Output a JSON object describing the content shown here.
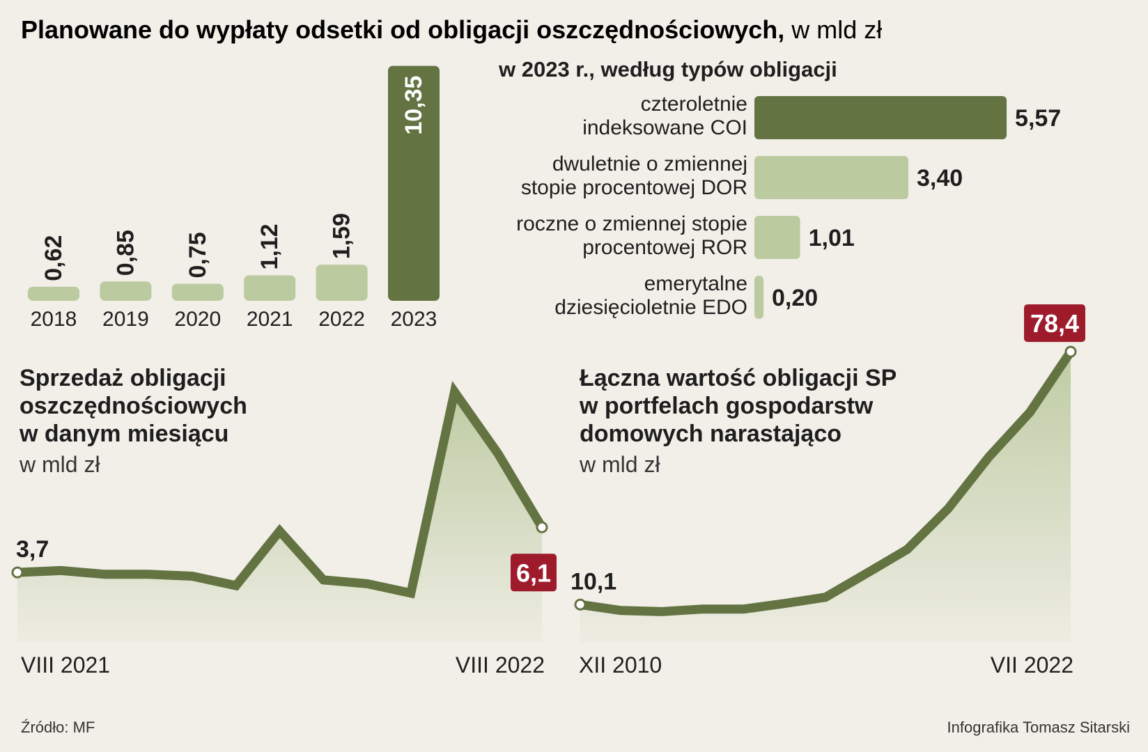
{
  "header": {
    "title_bold": "Planowane do wypłaty odsetki od obligacji oszczędnościowych,",
    "title_unit": " w mld zł"
  },
  "colors": {
    "dark_green": "#637342",
    "light_green": "#bccaa0",
    "red_badge": "#9e1b2c",
    "background": "#f1efe8"
  },
  "chart_data": [
    {
      "id": "interest_by_year",
      "type": "bar",
      "categories": [
        "2018",
        "2019",
        "2020",
        "2021",
        "2022",
        "2023"
      ],
      "values": [
        0.62,
        0.85,
        0.75,
        1.12,
        1.59,
        10.35
      ],
      "value_labels": [
        "0,62",
        "0,85",
        "0,75",
        "1,12",
        "1,59",
        "10,35"
      ],
      "highlight": "2023"
    },
    {
      "id": "interest_2023_by_type",
      "type": "bar",
      "orientation": "horizontal",
      "title": "w 2023 r., według typów obligacji",
      "categories": [
        [
          "czteroletnie",
          "indeksowane COI"
        ],
        [
          "dwuletnie o zmiennej",
          "stopie procentowej DOR"
        ],
        [
          "roczne o zmiennej stopie",
          "procentowej ROR"
        ],
        [
          "emerytalne",
          "dziesięcioletnie EDO"
        ]
      ],
      "values": [
        5.57,
        3.4,
        1.01,
        0.2
      ],
      "value_labels": [
        "5,57",
        "3,40",
        "1,01",
        "0,20"
      ]
    },
    {
      "id": "monthly_sales",
      "type": "area",
      "title": [
        "Sprzedaż obligacji",
        "oszczędnościowych",
        "w danym miesiącu"
      ],
      "unit": "w mld zł",
      "x_start": "VIII 2021",
      "x_end": "VIII 2022",
      "values": [
        3.7,
        3.8,
        3.6,
        3.6,
        3.5,
        3.0,
        5.9,
        3.3,
        3.1,
        2.6,
        13.3,
        10.0,
        6.1
      ],
      "first_label": "3,7",
      "last_label": "6,1",
      "ylim": [
        0,
        15
      ]
    },
    {
      "id": "household_holdings",
      "type": "area",
      "title": [
        "Łączna wartość obligacji SP",
        "w portfelach gospodarstw",
        "domowych narastająco"
      ],
      "unit": "w mld zł",
      "x_start": "XII 2010",
      "x_end": "VII 2022",
      "values": [
        10.1,
        8.5,
        8.2,
        8.9,
        8.9,
        10.4,
        12.1,
        18.5,
        25.0,
        36.0,
        50.0,
        62.0,
        78.4
      ],
      "first_label": "10,1",
      "last_label": "78,4",
      "ylim": [
        0,
        85
      ]
    }
  ],
  "footer": {
    "source": "Źródło: MF",
    "credit": "Infografika Tomasz Sitarski"
  }
}
